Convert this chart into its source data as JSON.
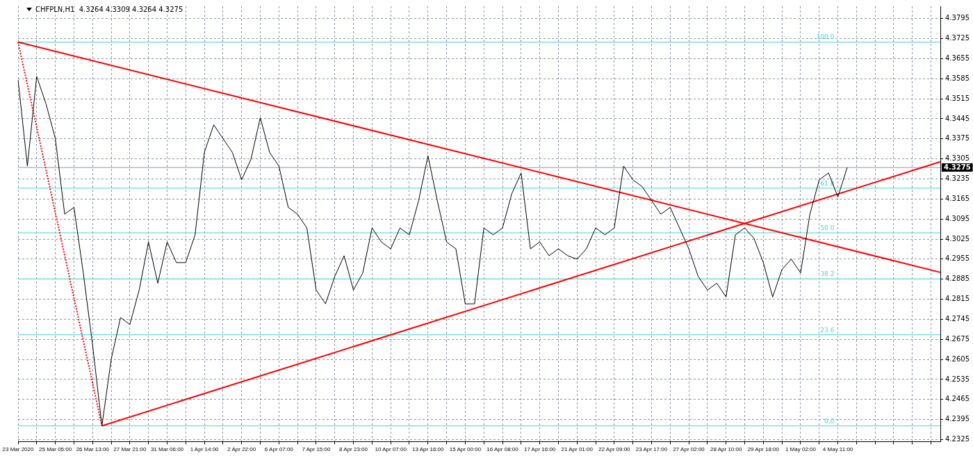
{
  "chart_data": {
    "type": "line",
    "title": "CHFPLN,H1  4.3264 4.3309 4.3264 4.3275",
    "categories": [
      "23 Mar 2020",
      null,
      null,
      null,
      "25 Mar 05:00",
      null,
      null,
      null,
      "26 Mar 13:00",
      null,
      null,
      null,
      "27 Mar 21:00",
      null,
      null,
      null,
      "31 Mar 06:00",
      null,
      null,
      null,
      "1 Apr 14:00",
      null,
      null,
      null,
      "2 Apr 22:00",
      null,
      null,
      null,
      "6 Apr 07:00",
      null,
      null,
      null,
      "7 Apr 15:00",
      null,
      null,
      null,
      "8 Apr 23:00",
      null,
      null,
      null,
      "10 Apr 07:00",
      null,
      null,
      null,
      "13 Apr 16:00",
      null,
      null,
      null,
      "15 Apr 00:00",
      null,
      null,
      null,
      "16 Apr 08:00",
      null,
      null,
      null,
      "17 Apr 16:00",
      null,
      null,
      null,
      "21 Apr 01:00",
      null,
      null,
      null,
      "22 Apr 09:00",
      null,
      null,
      null,
      "23 Apr 17:00",
      null,
      null,
      null,
      "27 Apr 02:00",
      null,
      null,
      null,
      "28 Apr 10:00",
      null,
      null,
      null,
      "29 Apr 18:00",
      null,
      null,
      null,
      "1 May 02:00",
      null,
      null,
      null,
      "4 May 11:00",
      null,
      null,
      null,
      null,
      null,
      null,
      null,
      null,
      null,
      null,
      null
    ],
    "series": [
      {
        "color": "#000000",
        "values": [
          4.3581,
          4.328,
          4.3593,
          4.3497,
          4.3376,
          4.3112,
          4.3136,
          4.2907,
          4.2655,
          4.2373,
          4.2606,
          4.2751,
          4.2727,
          4.2847,
          4.3015,
          4.2871,
          4.3015,
          4.2943,
          4.2943,
          4.304,
          4.3328,
          4.3424,
          4.3376,
          4.3328,
          4.3232,
          4.3304,
          4.3449,
          4.3328,
          4.328,
          4.3136,
          4.3112,
          4.3064,
          4.2847,
          4.2799,
          4.2895,
          4.2967,
          4.2847,
          4.2907,
          4.3064,
          4.3015,
          4.2991,
          4.3064,
          4.304,
          4.316,
          4.3316,
          4.316,
          4.3015,
          4.2991,
          4.2799,
          4.2799,
          4.3064,
          4.304,
          4.3064,
          4.3184,
          4.3256,
          4.2991,
          4.3015,
          4.2967,
          4.2991,
          4.2967,
          4.2955,
          4.2991,
          4.3064,
          4.304,
          4.3064,
          4.328,
          4.3232,
          4.3208,
          4.316,
          4.3112,
          4.3136,
          4.3064,
          4.2991,
          4.2895,
          4.2847,
          4.2871,
          4.2823,
          4.304,
          4.3064,
          4.3027,
          4.2943,
          4.2823,
          4.2919,
          4.2955,
          4.2907,
          4.3112,
          4.3232,
          4.3256,
          4.3172,
          4.3275,
          null,
          null,
          null,
          null,
          null,
          null,
          null,
          null,
          null,
          null
        ]
      },
      {
        "color": "#ff0000",
        "values": [
          4.3713,
          null,
          null,
          null,
          null,
          null,
          null,
          null,
          null,
          null,
          null,
          null,
          null,
          null,
          null,
          null,
          null,
          null,
          null,
          null,
          null,
          null,
          null,
          null,
          null,
          null,
          null,
          null,
          null,
          null,
          null,
          null,
          null,
          null,
          null,
          null,
          null,
          null,
          null,
          null,
          null,
          null,
          null,
          null,
          null,
          null,
          null,
          null,
          null,
          null,
          null,
          null,
          null,
          null,
          null,
          null,
          null,
          null,
          null,
          null,
          null,
          null,
          null,
          null,
          null,
          null,
          null,
          null,
          null,
          null,
          null,
          null,
          null,
          null,
          null,
          null,
          null,
          null,
          null,
          null,
          null,
          null,
          null,
          null,
          null,
          null,
          null,
          null,
          null,
          null,
          null,
          null,
          null,
          null,
          null,
          null,
          null,
          null,
          null,
          4.2909
        ]
      },
      {
        "color": "#ff0000",
        "values": [
          null,
          null,
          null,
          null,
          null,
          null,
          null,
          null,
          null,
          4.2373,
          null,
          null,
          null,
          null,
          null,
          null,
          null,
          null,
          null,
          null,
          null,
          null,
          null,
          null,
          null,
          null,
          null,
          null,
          null,
          null,
          null,
          null,
          null,
          null,
          null,
          null,
          null,
          null,
          null,
          null,
          null,
          null,
          null,
          null,
          null,
          null,
          null,
          null,
          null,
          null,
          null,
          null,
          null,
          null,
          null,
          null,
          null,
          null,
          null,
          null,
          null,
          null,
          null,
          null,
          null,
          null,
          null,
          null,
          null,
          null,
          null,
          null,
          null,
          null,
          null,
          null,
          null,
          null,
          null,
          null,
          null,
          null,
          null,
          null,
          null,
          null,
          null,
          null,
          null,
          null,
          null,
          null,
          null,
          null,
          null,
          null,
          null,
          null,
          null,
          4.3295
        ]
      },
      {
        "color": "#ff0000",
        "line_style": "dotted",
        "values": [
          4.3713,
          null,
          null,
          null,
          null,
          null,
          null,
          null,
          null,
          4.2373,
          null,
          null,
          null,
          null,
          null,
          null,
          null,
          null,
          null,
          null,
          null,
          null,
          null,
          null,
          null,
          null,
          null,
          null,
          null,
          null,
          null,
          null,
          null,
          null,
          null,
          null,
          null,
          null,
          null,
          null,
          null,
          null,
          null,
          null,
          null,
          null,
          null,
          null,
          null,
          null,
          null,
          null,
          null,
          null,
          null,
          null,
          null,
          null,
          null,
          null,
          null,
          null,
          null,
          null,
          null,
          null,
          null,
          null,
          null,
          null,
          null,
          null,
          null,
          null,
          null,
          null,
          null,
          null,
          null,
          null,
          null,
          null,
          null,
          null,
          null,
          null,
          null,
          null,
          null,
          null,
          null,
          null,
          null,
          null,
          null,
          null,
          null,
          null,
          null,
          null
        ]
      }
    ],
    "ylim": [
      4.2318,
      4.3838
    ],
    "yticks": [
      4.2325,
      4.2395,
      4.2465,
      4.2535,
      4.2605,
      4.2675,
      4.2745,
      4.2815,
      4.2885,
      4.2955,
      4.3025,
      4.3095,
      4.3165,
      4.3235,
      4.3305,
      4.3375,
      4.3445,
      4.3515,
      4.3585,
      4.3655,
      4.3725,
      4.3795
    ],
    "ref_lines": [
      {
        "axis": "y",
        "value": 4.3713,
        "color": "#40d8d8"
      },
      {
        "axis": "y",
        "value": 4.3203,
        "color": "#40d8d8"
      },
      {
        "axis": "y",
        "value": 4.3047,
        "color": "#40d8d8"
      },
      {
        "axis": "y",
        "value": 4.2886,
        "color": "#40d8d8"
      },
      {
        "axis": "y",
        "value": 4.2691,
        "color": "#40d8d8"
      },
      {
        "axis": "y",
        "value": 4.2373,
        "color": "#40d8d8"
      },
      {
        "axis": "y",
        "value": 4.3275,
        "label": "4.3275",
        "color": "#8a9aaa"
      }
    ],
    "annotations": [
      "100.0",
      "61.8",
      "50.0",
      "38.2",
      "23.6",
      "0.0"
    ],
    "grid": true,
    "legend": false,
    "marker": "none",
    "line_style": "solid"
  }
}
